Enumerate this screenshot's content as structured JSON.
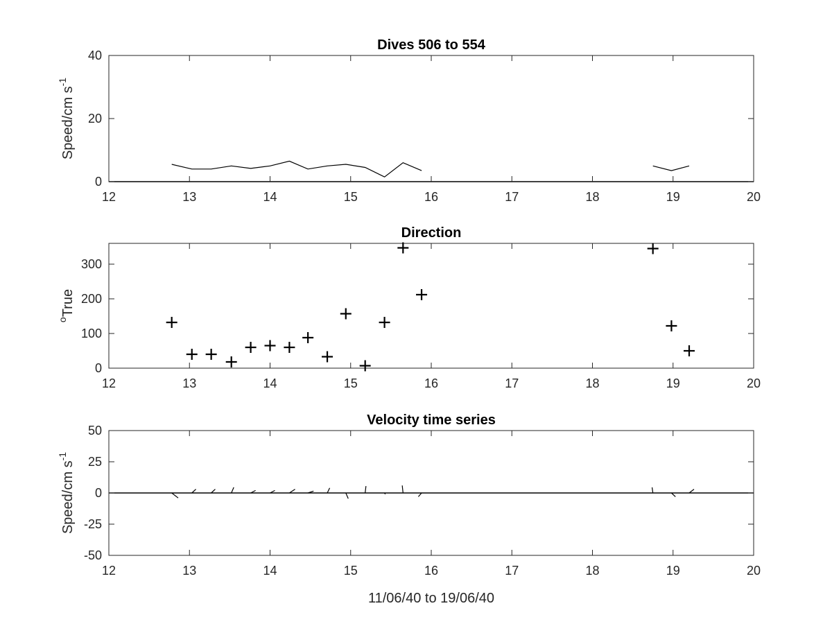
{
  "colors": {
    "axis": "#262626",
    "series": "#000000",
    "background": "#ffffff"
  },
  "chart_data": [
    {
      "type": "line",
      "title": "Dives 506 to 554",
      "xlabel": "",
      "ylabel": "Speed/cm s",
      "ylabel_superscript": "-1",
      "xlim": [
        12,
        20
      ],
      "ylim": [
        0,
        40
      ],
      "xticks": [
        12,
        13,
        14,
        15,
        16,
        17,
        18,
        19,
        20
      ],
      "yticks": [
        0,
        20,
        40
      ],
      "grid": false,
      "segments": [
        {
          "x": [
            12.78,
            13.03,
            13.27,
            13.52,
            13.76,
            14.0,
            14.24,
            14.47,
            14.71,
            14.94,
            15.18,
            15.42,
            15.65,
            15.88
          ],
          "y": [
            5.5,
            4.0,
            4.0,
            5.0,
            4.2,
            5.0,
            6.5,
            4.0,
            5.0,
            5.5,
            4.5,
            1.5,
            6.0,
            3.5
          ]
        },
        {
          "x": [
            18.75,
            18.98,
            19.2
          ],
          "y": [
            5.0,
            3.5,
            5.0
          ]
        }
      ],
      "baseline": 0
    },
    {
      "type": "scatter",
      "title": "Direction",
      "xlabel": "",
      "ylabel": "True",
      "ylabel_prefix": "o",
      "xlim": [
        12,
        20
      ],
      "ylim": [
        0,
        360
      ],
      "xticks": [
        12,
        13,
        14,
        15,
        16,
        17,
        18,
        19,
        20
      ],
      "yticks": [
        0,
        100,
        200,
        300
      ],
      "grid": false,
      "marker": "plus",
      "x": [
        12.78,
        13.03,
        13.27,
        13.52,
        13.76,
        14.0,
        14.24,
        14.47,
        14.71,
        14.94,
        15.18,
        15.42,
        15.65,
        15.88,
        18.75,
        18.98,
        19.2
      ],
      "y": [
        132,
        40,
        40,
        18,
        60,
        65,
        60,
        88,
        33,
        157,
        7,
        132,
        347,
        212,
        345,
        122,
        50
      ]
    },
    {
      "type": "line",
      "title": "Velocity time series",
      "xlabel": "11/06/40 to 19/06/40",
      "ylabel": "Speed/cm s",
      "ylabel_superscript": "-1",
      "xlim": [
        12,
        20
      ],
      "ylim": [
        -50,
        50
      ],
      "xticks": [
        12,
        13,
        14,
        15,
        16,
        17,
        18,
        19,
        20
      ],
      "yticks": [
        -50,
        -25,
        0,
        25,
        50
      ],
      "grid": false,
      "baseline": 0,
      "sticks": {
        "x": [
          12.78,
          13.03,
          13.27,
          13.52,
          13.76,
          14.0,
          14.24,
          14.47,
          14.71,
          14.94,
          15.18,
          15.42,
          15.65,
          15.88,
          18.75,
          18.98,
          19.2
        ],
        "u": [
          0.08,
          0.05,
          0.05,
          0.03,
          0.06,
          0.06,
          0.07,
          0.07,
          0.03,
          0.03,
          0.01,
          0.01,
          -0.01,
          -0.04,
          -0.01,
          0.05,
          0.06
        ],
        "v": [
          -4.0,
          3.0,
          3.0,
          4.5,
          2.0,
          2.0,
          3.0,
          1.5,
          4.0,
          -4.5,
          5.5,
          -1.0,
          6.0,
          -3.0,
          4.5,
          -3.0,
          3.0
        ]
      }
    }
  ]
}
